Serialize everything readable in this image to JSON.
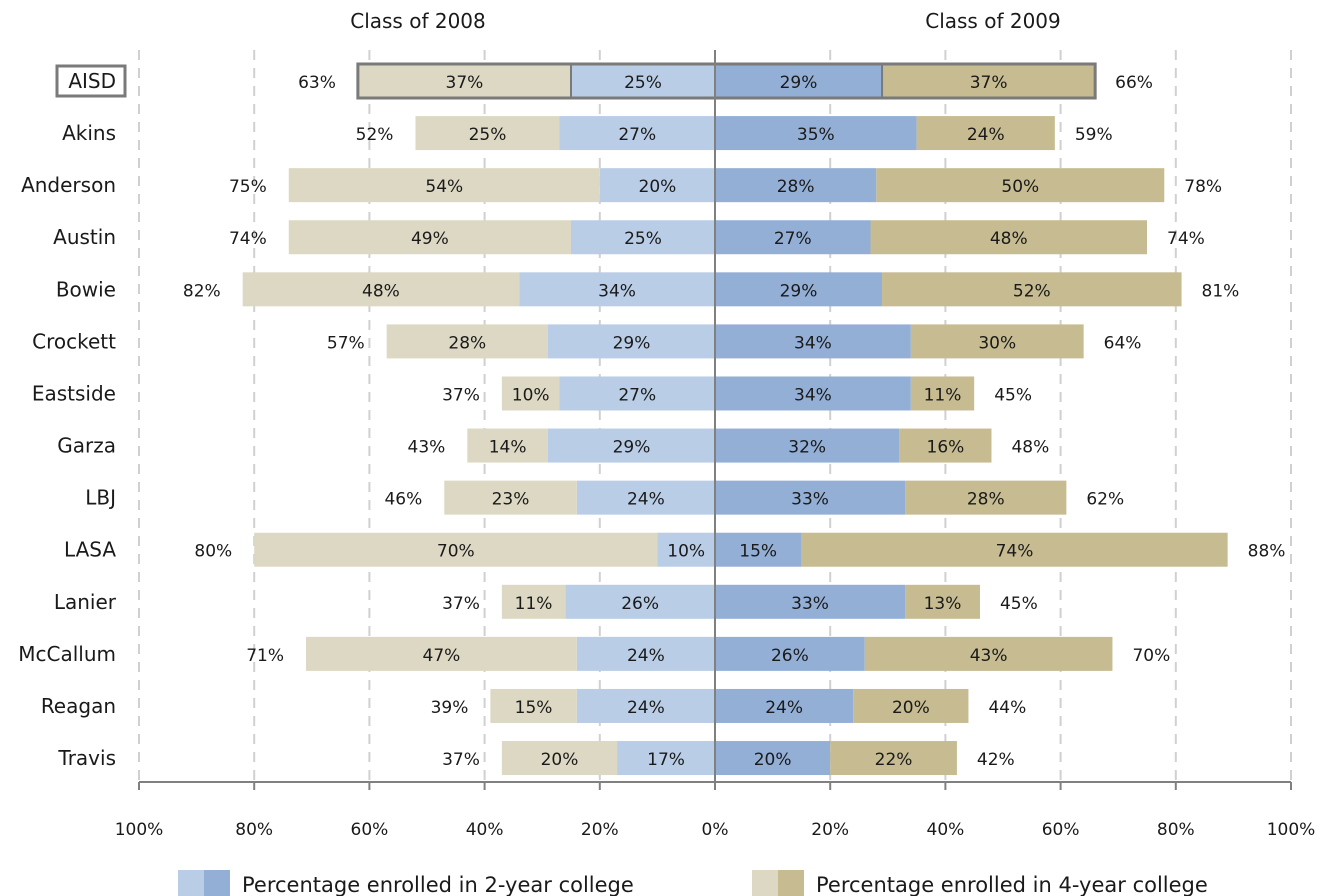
{
  "chart_data": {
    "type": "bar",
    "subtype": "diverging stacked horizontal bar",
    "panels": [
      {
        "title": "Class of 2008",
        "side": "left"
      },
      {
        "title": "Class of 2009",
        "side": "right"
      }
    ],
    "categories": [
      "AISD",
      "Akins",
      "Anderson",
      "Austin",
      "Bowie",
      "Crockett",
      "Eastside",
      "Garza",
      "LBJ",
      "LASA",
      "Lanier",
      "McCallum",
      "Reagan",
      "Travis"
    ],
    "highlight_category": "AISD",
    "series": [
      {
        "name": "Percentage enrolled in 2-year college",
        "key": "two_year"
      },
      {
        "name": "Percentage enrolled in 4-year college",
        "key": "four_year"
      }
    ],
    "class_2008": {
      "two_year": [
        25,
        27,
        20,
        25,
        34,
        29,
        27,
        29,
        24,
        10,
        26,
        24,
        24,
        17
      ],
      "four_year": [
        37,
        25,
        54,
        49,
        48,
        28,
        10,
        14,
        23,
        70,
        11,
        47,
        15,
        20
      ],
      "total": [
        63,
        52,
        75,
        74,
        82,
        57,
        37,
        43,
        46,
        80,
        37,
        71,
        39,
        37
      ]
    },
    "class_2009": {
      "two_year": [
        29,
        35,
        28,
        27,
        29,
        34,
        34,
        32,
        33,
        15,
        33,
        26,
        24,
        20
      ],
      "four_year": [
        37,
        24,
        50,
        48,
        52,
        30,
        11,
        16,
        28,
        74,
        13,
        43,
        20,
        22
      ],
      "total": [
        66,
        59,
        78,
        74,
        81,
        64,
        45,
        48,
        62,
        88,
        45,
        70,
        44,
        42
      ]
    },
    "axis": {
      "range": [
        0,
        100
      ],
      "ticks": [
        100,
        80,
        60,
        40,
        20,
        0,
        20,
        40,
        60,
        80,
        100
      ],
      "tick_labels": [
        "100%",
        "80%",
        "60%",
        "40%",
        "20%",
        "0%",
        "20%",
        "40%",
        "60%",
        "80%",
        "100%"
      ],
      "grid": true
    },
    "legend_position": "bottom",
    "colors": {
      "two_year_2008": "#b9cde6",
      "two_year_2009": "#93afd6",
      "four_year_2008": "#ddd8c3",
      "four_year_2009": "#c6bb91",
      "highlight_border": "#7a7a7a",
      "center_line": "#808080",
      "grid": "#d0d0d0"
    }
  }
}
